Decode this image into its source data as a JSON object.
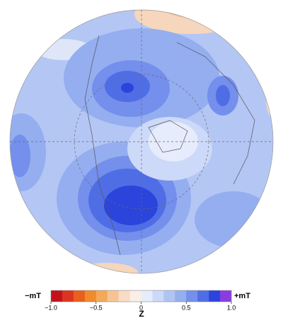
{
  "colorbar": {
    "label": "Z",
    "min_label": "−mT",
    "max_label": "+mT",
    "range": [
      -1.0,
      1.0
    ],
    "ticks": [
      {
        "value": -1.0,
        "label": "−1.0"
      },
      {
        "value": -0.5,
        "label": "−0.5"
      },
      0,
      0.5,
      {
        "value": 1.0,
        "label": "1.0"
      }
    ],
    "colors": [
      "#c4121c",
      "#dc3420",
      "#e8601c",
      "#f08a2c",
      "#f4a858",
      "#f6c494",
      "#f8dcc4",
      "#fbeee6",
      "#e6ecfc",
      "#ccd9f8",
      "#b0c4f4",
      "#94aef0",
      "#748fec",
      "#4f6ee6",
      "#2a44dc",
      "#8a3ce0"
    ]
  }
}
